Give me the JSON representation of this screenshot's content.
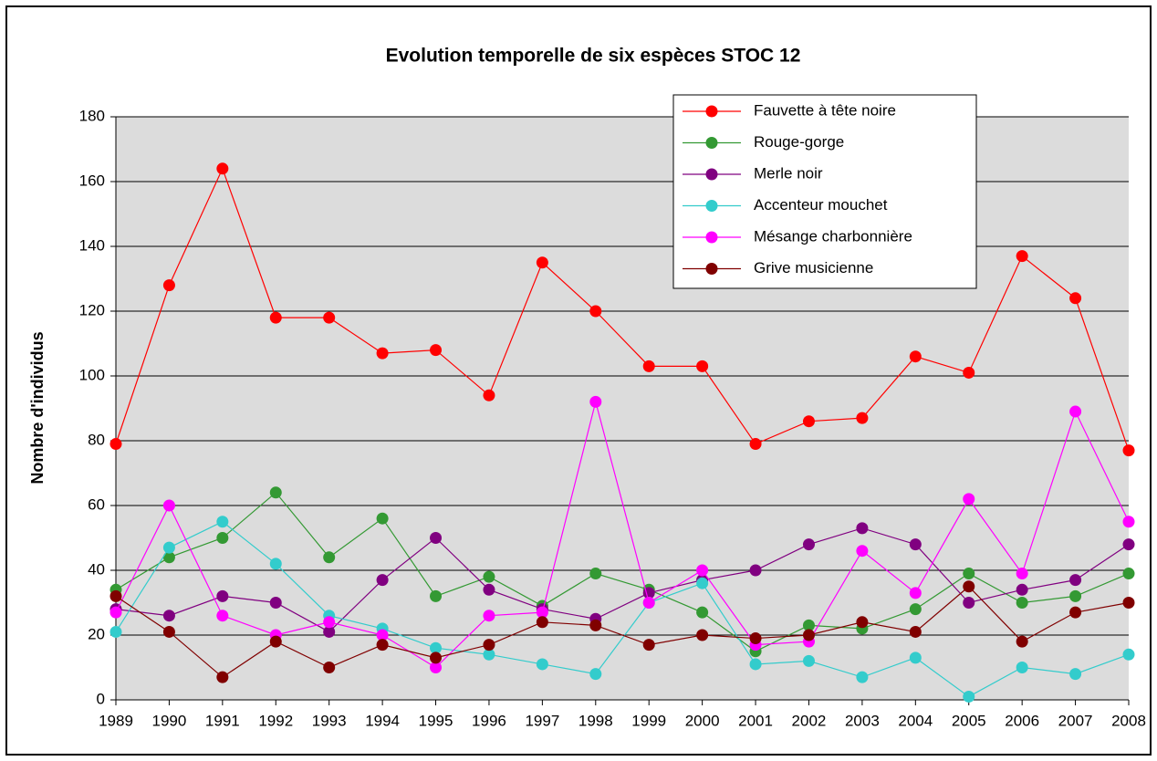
{
  "chart_data": {
    "type": "line",
    "title": "Evolution temporelle de six espèces STOC 12",
    "y_label": "Nombre d'individus",
    "categories": [
      "1989",
      "1990",
      "1991",
      "1992",
      "1993",
      "1994",
      "1995",
      "1996",
      "1997",
      "1998",
      "1999",
      "2000",
      "2001",
      "2002",
      "2003",
      "2004",
      "2005",
      "2006",
      "2007",
      "2008"
    ],
    "ylim": [
      0,
      180
    ],
    "yticks": [
      0,
      20,
      40,
      60,
      80,
      100,
      120,
      140,
      160,
      180
    ],
    "grid": true,
    "legend": "top-right",
    "series": [
      {
        "name": "Fauvette à tête noire",
        "color": "#ff0000",
        "values": [
          79,
          128,
          164,
          118,
          118,
          107,
          108,
          94,
          135,
          120,
          103,
          103,
          79,
          86,
          87,
          106,
          101,
          137,
          124,
          77
        ]
      },
      {
        "name": "Rouge-gorge",
        "color": "#339933",
        "values": [
          34,
          44,
          50,
          64,
          44,
          56,
          32,
          38,
          29,
          39,
          34,
          27,
          15,
          23,
          22,
          28,
          39,
          30,
          32,
          39
        ]
      },
      {
        "name": "Merle noir",
        "color": "#800080",
        "values": [
          28,
          26,
          32,
          30,
          21,
          37,
          50,
          34,
          28,
          25,
          33,
          37,
          40,
          48,
          53,
          48,
          30,
          34,
          37,
          48
        ]
      },
      {
        "name": "Accenteur mouchet",
        "color": "#33cccc",
        "values": [
          21,
          47,
          55,
          42,
          26,
          22,
          16,
          14,
          11,
          8,
          30,
          36,
          11,
          12,
          7,
          13,
          1,
          10,
          8,
          14
        ]
      },
      {
        "name": "Mésange charbonnière",
        "color": "#ff00ff",
        "values": [
          27,
          60,
          26,
          20,
          24,
          20,
          10,
          26,
          27,
          92,
          30,
          40,
          17,
          18,
          46,
          33,
          62,
          39,
          89,
          55
        ]
      },
      {
        "name": "Grive musicienne",
        "color": "#800000",
        "values": [
          32,
          21,
          7,
          18,
          10,
          17,
          13,
          17,
          24,
          23,
          17,
          20,
          19,
          20,
          24,
          21,
          35,
          18,
          27,
          30
        ]
      }
    ]
  }
}
